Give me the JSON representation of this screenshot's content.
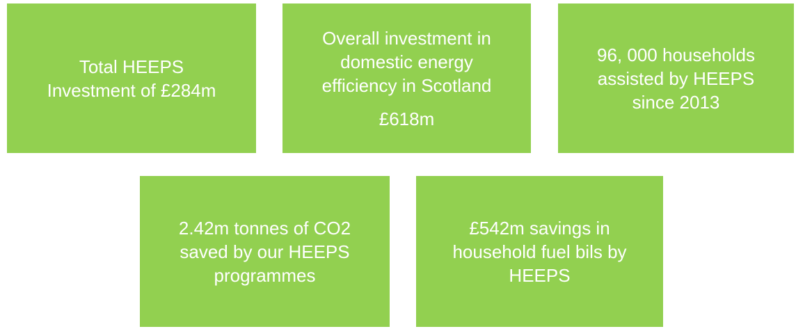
{
  "boxes": [
    {
      "paragraphs": [
        [
          "Total HEEPS",
          "Investment of £284m"
        ]
      ]
    },
    {
      "paragraphs": [
        [
          "Overall investment in",
          "domestic energy",
          "efficiency in Scotland"
        ],
        [
          "£618m"
        ]
      ]
    },
    {
      "paragraphs": [
        [
          "96, 000 households",
          "assisted by HEEPS",
          "since 2013"
        ]
      ]
    },
    {
      "paragraphs": [
        [
          "2.42m tonnes of CO2",
          "saved by our HEEPS",
          "programmes"
        ]
      ]
    },
    {
      "paragraphs": [
        [
          "£542m savings in",
          "household fuel bils by",
          "HEEPS"
        ]
      ]
    }
  ]
}
